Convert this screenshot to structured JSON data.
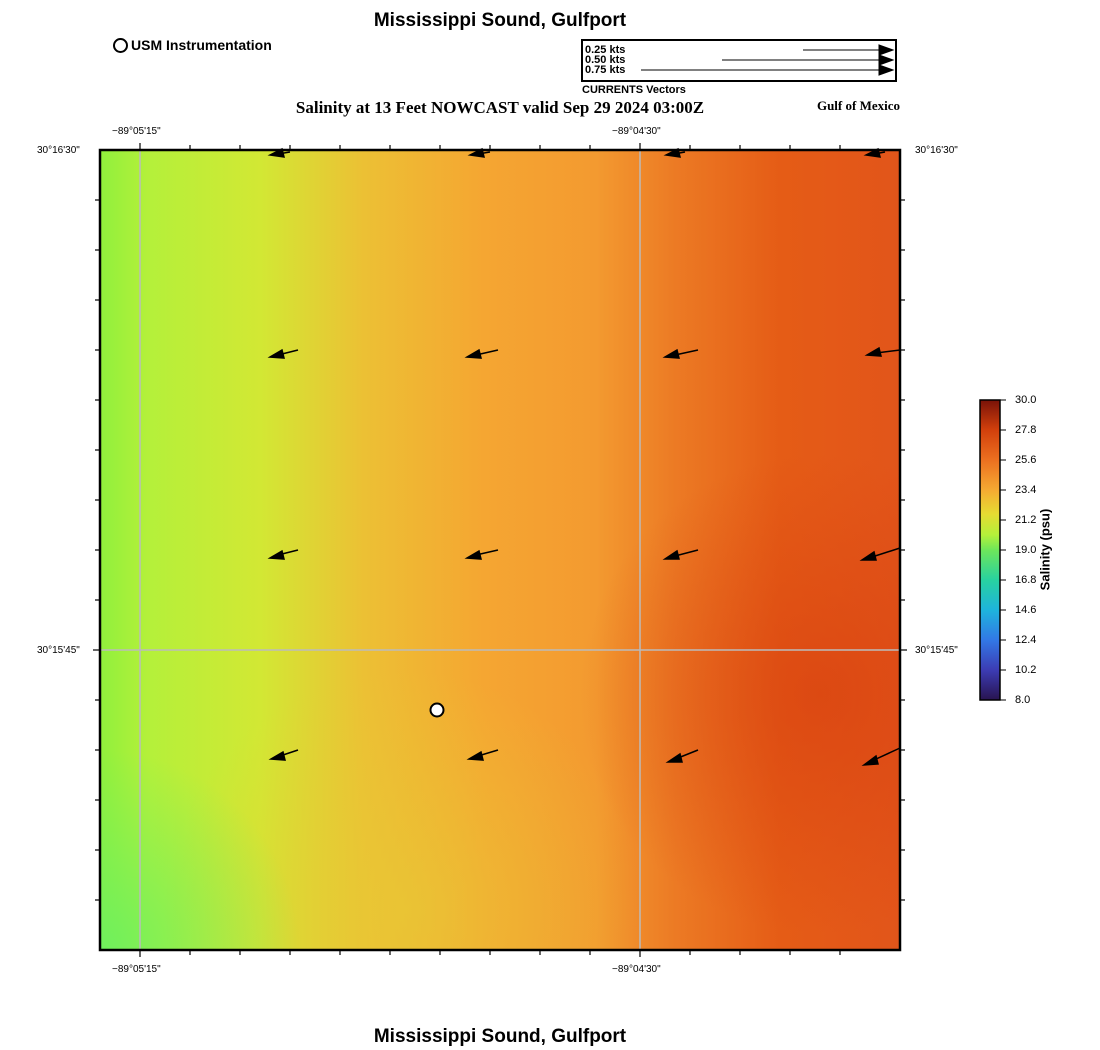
{
  "header": {
    "title": "Mississippi Sound, Gulfport",
    "subtitle": "Salinity at 13 Feet NOWCAST valid Sep 29 2024 03:00Z",
    "region_label": "Gulf of Mexico",
    "footer_title": "Mississippi Sound, Gulfport"
  },
  "legend": {
    "station_label": "USM Instrumentation",
    "vector_scale": [
      "0.25 kts",
      "0.50 kts",
      "0.75 kts"
    ],
    "vector_caption": "CURRENTS Vectors"
  },
  "axes": {
    "lon_ticks": [
      "−89°05'15\"",
      "−89°04'30\""
    ],
    "lat_ticks": [
      "30°16'30\"",
      "30°15'45\""
    ]
  },
  "colorbar": {
    "title": "Salinity (psu)",
    "ticks": [
      "30.0",
      "27.8",
      "25.6",
      "23.4",
      "21.2",
      "19.0",
      "16.8",
      "14.6",
      "12.4",
      "10.2",
      "8.0"
    ],
    "min": 8.0,
    "max": 30.0,
    "colors": [
      "#1e1450",
      "#2d5ad2",
      "#1eb4dc",
      "#28dc8c",
      "#a0f03c",
      "#e6dc32",
      "#f5a032",
      "#e65a14",
      "#d23c0a",
      "#781e0a"
    ]
  },
  "colors": {
    "map_left": "#8cf03c",
    "map_mid": "#f5a032",
    "map_right": "#e05514",
    "grid": "#bbbbbb",
    "station": "#ffffff"
  }
}
